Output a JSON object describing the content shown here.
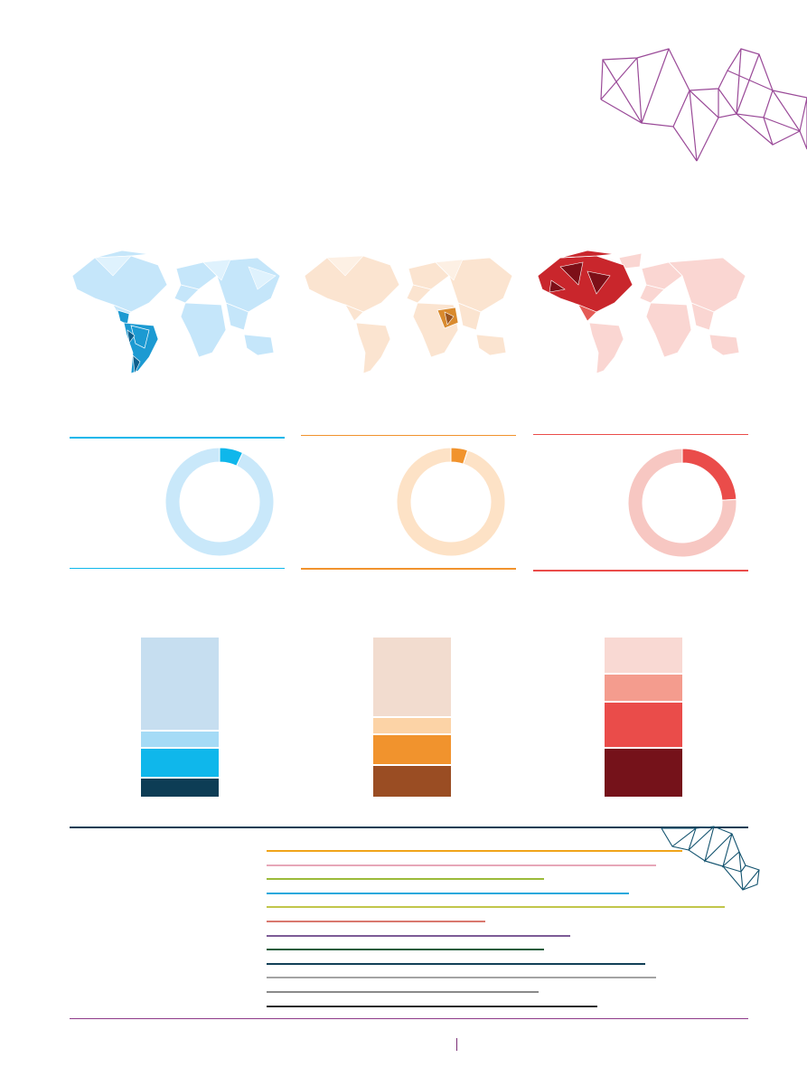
{
  "colors": {
    "blue": "#0fb7eb",
    "orange": "#f1932d",
    "red": "#ea4c4a",
    "navy": "#0d3d55",
    "purple": "#8e3a8a"
  },
  "maps": [
    {
      "highlight": "south-america",
      "palette": "blue"
    },
    {
      "highlight": "central-africa",
      "palette": "orange"
    },
    {
      "highlight": "north-america",
      "palette": "red"
    }
  ],
  "chart_data": [
    {
      "type": "pie",
      "variant": "donut",
      "slices": [
        {
          "value": 7,
          "color": "#0fb7eb"
        },
        {
          "value": 93,
          "color": "#c9e8fa"
        }
      ]
    },
    {
      "type": "pie",
      "variant": "donut",
      "slices": [
        {
          "value": 5,
          "color": "#f1932d"
        },
        {
          "value": 95,
          "color": "#fde2c6"
        }
      ]
    },
    {
      "type": "pie",
      "variant": "donut",
      "slices": [
        {
          "value": 24,
          "color": "#ea4c4a"
        },
        {
          "value": 76,
          "color": "#f7c7c2"
        }
      ]
    },
    {
      "type": "bar",
      "variant": "stacked-100",
      "segments": [
        {
          "value": 60,
          "color": "#c6def0"
        },
        {
          "value": 10,
          "color": "#a5dbf6"
        },
        {
          "value": 18,
          "color": "#0fb7eb"
        },
        {
          "value": 12,
          "color": "#0d3d55"
        }
      ]
    },
    {
      "type": "bar",
      "variant": "stacked-100",
      "segments": [
        {
          "value": 51,
          "color": "#f2dccf"
        },
        {
          "value": 10,
          "color": "#fcd3a6"
        },
        {
          "value": 19,
          "color": "#f1932d"
        },
        {
          "value": 20,
          "color": "#9a4d23"
        }
      ]
    },
    {
      "type": "bar",
      "variant": "stacked-100",
      "segments": [
        {
          "value": 23,
          "color": "#f9d9d3"
        },
        {
          "value": 17,
          "color": "#f49c8e"
        },
        {
          "value": 29,
          "color": "#ea4c4a"
        },
        {
          "value": 31,
          "color": "#75121a"
        }
      ]
    }
  ],
  "legend_lines": [
    {
      "color": "#f0a41a",
      "length": 78
    },
    {
      "color": "#e7a7b8",
      "length": 73
    },
    {
      "color": "#9bbb3a",
      "length": 52
    },
    {
      "color": "#27a9dc",
      "length": 68
    },
    {
      "color": "#c1c64a",
      "length": 86
    },
    {
      "color": "#d9786e",
      "length": 41
    },
    {
      "color": "#7c5b96",
      "length": 57
    },
    {
      "color": "#1e5c3c",
      "length": 52
    },
    {
      "color": "#123f57",
      "length": 71
    },
    {
      "color": "#a3a3a3",
      "length": 73
    },
    {
      "color": "#8a8a8a",
      "length": 51
    },
    {
      "color": "#2c2c2c",
      "length": 62
    }
  ]
}
